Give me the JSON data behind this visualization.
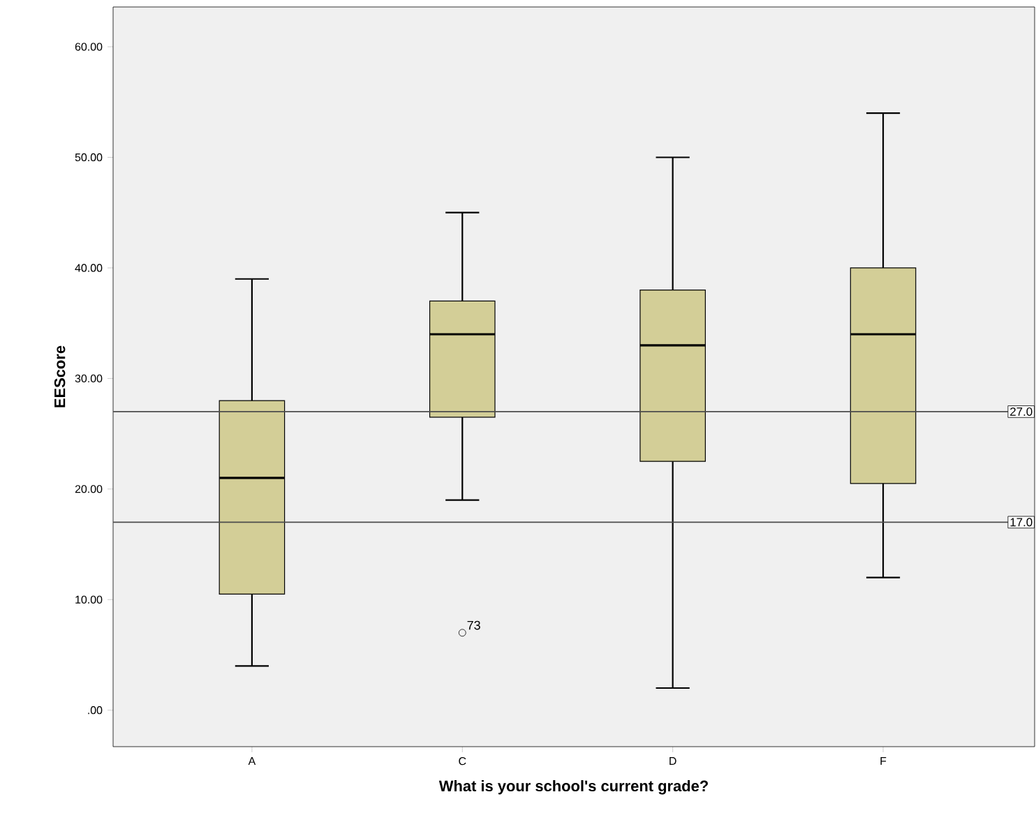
{
  "chart_data": {
    "type": "box",
    "xlabel": "What is your school's current grade?",
    "ylabel": "EEScore",
    "categories": [
      "A",
      "C",
      "D",
      "F"
    ],
    "color": "#d3ce97",
    "boxes": [
      {
        "low": 4,
        "q1": 10.5,
        "median": 21,
        "q3": 28,
        "high": 39
      },
      {
        "low": 19,
        "q1": 26.5,
        "median": 34,
        "q3": 37,
        "high": 45,
        "outliers": [
          7
        ]
      },
      {
        "low": 2,
        "q1": 22.5,
        "median": 33,
        "q3": 38,
        "high": 50
      },
      {
        "low": 12,
        "q1": 20.5,
        "median": 34,
        "q3": 40,
        "high": 54
      }
    ],
    "ylim": [
      -3.3,
      63.6
    ],
    "yticks": [
      {
        "value": 0,
        "label": ".00"
      },
      {
        "value": 10,
        "label": "10.00"
      },
      {
        "value": 20,
        "label": "20.00"
      },
      {
        "value": 30,
        "label": "30.00"
      },
      {
        "value": 40,
        "label": "40.00"
      },
      {
        "value": 50,
        "label": "50.00"
      },
      {
        "value": 60,
        "label": "60.00"
      }
    ],
    "ref_lines": [
      {
        "axis": "y",
        "value": 27,
        "label": "27.0"
      },
      {
        "axis": "y",
        "value": 17,
        "label": "17.0"
      }
    ],
    "annotations": [
      "73"
    ]
  }
}
